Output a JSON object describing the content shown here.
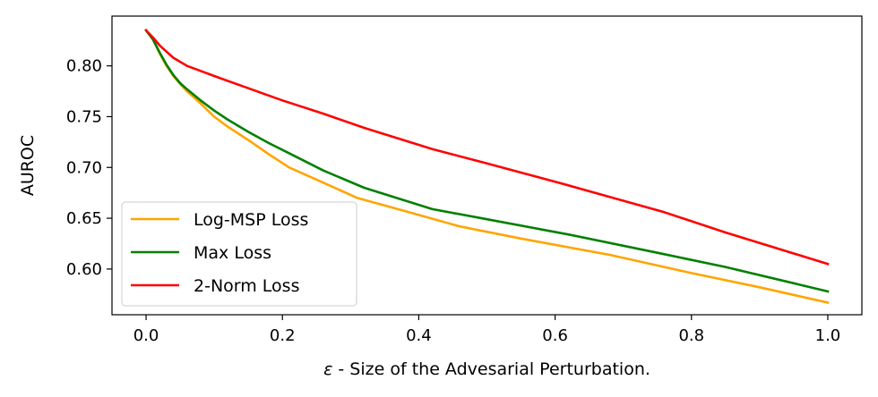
{
  "chart_data": {
    "type": "line",
    "title": "",
    "xlabel_symbol": "ε",
    "xlabel_rest": " - Size of the Advesarial Perturbation.",
    "ylabel": "AUROC",
    "xlim": [
      -0.05,
      1.05
    ],
    "ylim": [
      0.555,
      0.849
    ],
    "xticks": [
      0.0,
      0.2,
      0.4,
      0.6,
      0.8,
      1.0
    ],
    "xtick_labels": [
      "0.0",
      "0.2",
      "0.4",
      "0.6",
      "0.8",
      "1.0"
    ],
    "yticks": [
      0.6,
      0.65,
      0.7,
      0.75,
      0.8
    ],
    "ytick_labels": [
      "0.60",
      "0.65",
      "0.70",
      "0.75",
      "0.80"
    ],
    "grid": false,
    "legend_position": "lower-left",
    "series": [
      {
        "name": "Log-MSP Loss",
        "color": "#ffa500",
        "x": [
          0.0,
          0.01,
          0.02,
          0.03,
          0.04,
          0.05,
          0.06,
          0.08,
          0.1,
          0.12,
          0.15,
          0.18,
          0.21,
          0.26,
          0.31,
          0.38,
          0.46,
          0.55,
          0.68,
          0.8,
          0.9,
          1.0
        ],
        "y": [
          0.835,
          0.826,
          0.812,
          0.8,
          0.79,
          0.782,
          0.775,
          0.763,
          0.75,
          0.74,
          0.727,
          0.713,
          0.7,
          0.685,
          0.67,
          0.657,
          0.642,
          0.63,
          0.614,
          0.596,
          0.582,
          0.567
        ]
      },
      {
        "name": "Max Loss",
        "color": "#008000",
        "x": [
          0.0,
          0.01,
          0.02,
          0.03,
          0.04,
          0.05,
          0.06,
          0.08,
          0.1,
          0.12,
          0.15,
          0.18,
          0.21,
          0.26,
          0.32,
          0.42,
          0.5,
          0.62,
          0.75,
          0.85,
          1.0
        ],
        "y": [
          0.835,
          0.826,
          0.813,
          0.801,
          0.791,
          0.783,
          0.777,
          0.766,
          0.756,
          0.747,
          0.735,
          0.724,
          0.714,
          0.697,
          0.68,
          0.659,
          0.649,
          0.634,
          0.616,
          0.602,
          0.578
        ]
      },
      {
        "name": "2-Norm Loss",
        "color": "#ff0000",
        "x": [
          0.0,
          0.01,
          0.02,
          0.03,
          0.04,
          0.05,
          0.06,
          0.08,
          0.1,
          0.15,
          0.2,
          0.26,
          0.32,
          0.42,
          0.5,
          0.6,
          0.68,
          0.76,
          0.85,
          1.0
        ],
        "y": [
          0.835,
          0.828,
          0.82,
          0.814,
          0.808,
          0.804,
          0.8,
          0.795,
          0.79,
          0.778,
          0.766,
          0.753,
          0.739,
          0.718,
          0.704,
          0.686,
          0.671,
          0.656,
          0.636,
          0.605
        ]
      }
    ]
  }
}
